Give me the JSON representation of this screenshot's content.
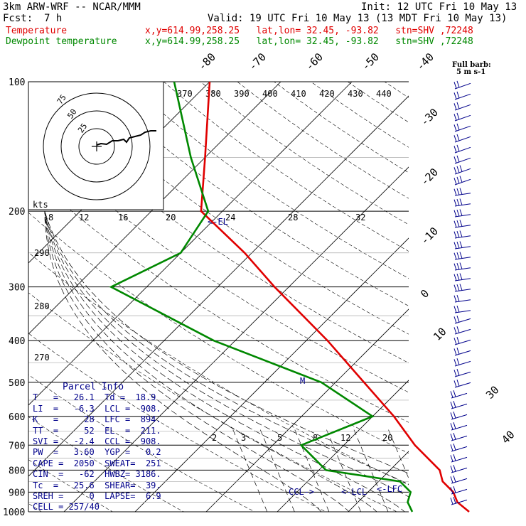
{
  "header": {
    "model": "3km ARW-WRF -- NCAR/MMM",
    "init": "Init: 12 UTC Fri 10 May 13",
    "fcst_label": "Fcst:",
    "fcst_value": "7 h",
    "valid": "Valid: 19 UTC Fri 10 May 13 (13 MDT Fri 10 May 13)"
  },
  "legend": [
    {
      "name": "Temperature",
      "info": "x,y=614.99,258.25   lat,lon= 32.45, -93.82   stn=SHV ,72248",
      "color": "#e00000"
    },
    {
      "name": "Dewpoint temperature",
      "info": "x,y=614.99,258.25   lat,lon= 32.45, -93.82   stn=SHV ,72248",
      "color": "#008800"
    }
  ],
  "barb_legend": {
    "title": "Full barb:",
    "value": "5 m s-1"
  },
  "parcel": {
    "title": "Parcel Info",
    "rows": [
      "T   =   26.1  Td =  18.9",
      "LI  =   -6.3  LCL =  908.",
      "K   =     28  LFC =  894.",
      "TT  =     52  EL  =  211.",
      "SVI =   -2.4  CCL =  908.",
      "PW  =   3.60  YGP =   0.2",
      "CAPE =  2050  SWEAT=  251",
      "CIN  =   -62  HWBZ= 3186.",
      "Tc  =   25.6  SHEAR=  39.",
      "SREH =     0  LAPSE=  6.9",
      "CELL = 257/40"
    ]
  },
  "hodograph": {
    "kts_label": "kts",
    "ring_labels": [
      "25",
      "50",
      "75"
    ]
  },
  "annotations": {
    "lcl": "CCL->",
    "lcl2": "<-LCL",
    "lfc": "<-LFC",
    "el": "<-EL",
    "m": "M"
  },
  "chart_data": {
    "type": "skew-t",
    "y_axis": "pressure (hPa)",
    "pressure_ticks": [
      100,
      200,
      300,
      400,
      500,
      600,
      700,
      800,
      900,
      1000
    ],
    "isotherm_labels": [
      "-80",
      "-70",
      "-60",
      "-50",
      "-40",
      "-30",
      "-20",
      "-10",
      "0",
      "10",
      "30",
      "40"
    ],
    "theta_labels": [
      "370",
      "380",
      "390",
      "400",
      "410",
      "420",
      "430",
      "440"
    ],
    "mixing_ratio_labels": [
      "2",
      "3",
      "5",
      "8",
      "12",
      "20"
    ],
    "lower_labels": [
      "8",
      "12",
      "16",
      "20",
      "24",
      "28",
      "32"
    ],
    "side_labels": [
      "290",
      "280",
      "270"
    ],
    "temperature": [
      [
        1000,
        27
      ],
      [
        950,
        24
      ],
      [
        900,
        22
      ],
      [
        850,
        19
      ],
      [
        800,
        17
      ],
      [
        700,
        10
      ],
      [
        600,
        3
      ],
      [
        500,
        -6
      ],
      [
        400,
        -17
      ],
      [
        300,
        -32
      ],
      [
        250,
        -41
      ],
      [
        200,
        -53
      ],
      [
        150,
        -60
      ],
      [
        100,
        -70
      ]
    ],
    "dewpoint": [
      [
        1000,
        19
      ],
      [
        950,
        17
      ],
      [
        900,
        16
      ],
      [
        850,
        13
      ],
      [
        800,
        1
      ],
      [
        700,
        -6
      ],
      [
        600,
        0
      ],
      [
        500,
        -12
      ],
      [
        400,
        -33
      ],
      [
        300,
        -55
      ],
      [
        250,
        -50
      ],
      [
        200,
        -52
      ],
      [
        150,
        -62
      ],
      [
        100,
        -75
      ]
    ]
  }
}
